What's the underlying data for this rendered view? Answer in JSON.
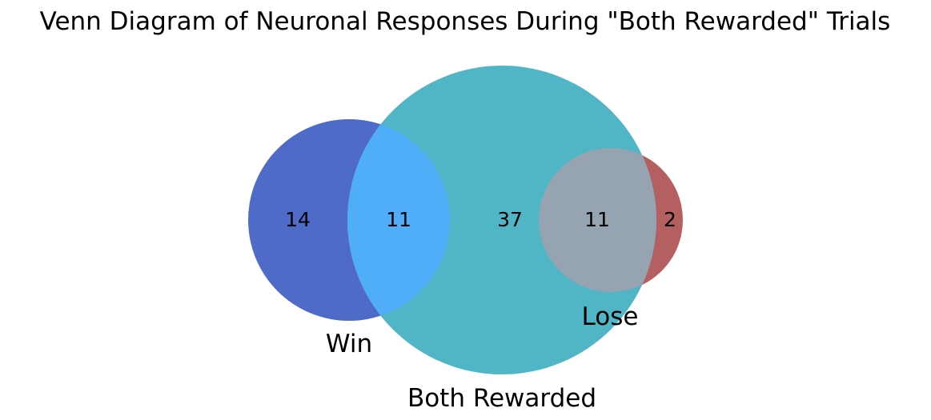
{
  "title": "Venn Diagram of Neuronal Responses During \"Both Rewarded\" Trials",
  "sets": {
    "win": {
      "label": "Win",
      "color": "#4F6BC8"
    },
    "both_rewarded": {
      "label": "Both Rewarded",
      "color": "#50B6C6"
    },
    "lose": {
      "label": "Lose",
      "color": "#B46060"
    }
  },
  "regions": {
    "win_only": {
      "count": "14"
    },
    "win_and_both": {
      "count": "11",
      "color": "#50ADF8"
    },
    "both_only": {
      "count": "37"
    },
    "both_and_lose": {
      "count": "11",
      "color": "#96A3B0"
    },
    "lose_only": {
      "count": "2"
    }
  }
}
